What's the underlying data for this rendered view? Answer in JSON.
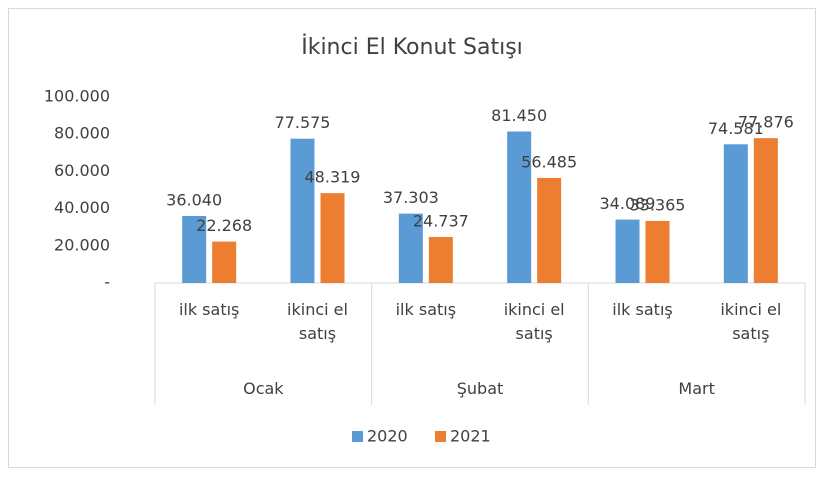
{
  "chart_data": {
    "type": "bar",
    "title": "İkinci El Konut Satışı",
    "groups": [
      "Ocak",
      "Şubat",
      "Mart"
    ],
    "categories": [
      "ilk satış",
      "ikinci el satış",
      "ilk satış",
      "ikinci el satış",
      "ilk satış",
      "ikinci el satış"
    ],
    "series": [
      {
        "name": "2020",
        "color": "#5b9bd5",
        "values": [
          36040,
          77575,
          37303,
          81450,
          34089,
          74581
        ],
        "value_labels": [
          "36.040",
          "77.575",
          "37.303",
          "81.450",
          "34.089",
          "74.581"
        ]
      },
      {
        "name": "2021",
        "color": "#ed7d31",
        "values": [
          22268,
          48319,
          24737,
          56485,
          33365,
          77876
        ],
        "value_labels": [
          "22.268",
          "48.319",
          "24.737",
          "56.485",
          "33.365",
          "77.876"
        ]
      }
    ],
    "ylim": [
      0,
      100000
    ],
    "yticks": [
      {
        "value": 0,
        "label": "-"
      },
      {
        "value": 20000,
        "label": "20.000"
      },
      {
        "value": 40000,
        "label": "40.000"
      },
      {
        "value": 60000,
        "label": "60.000"
      },
      {
        "value": 80000,
        "label": "80.000"
      },
      {
        "value": 100000,
        "label": "100.000"
      }
    ],
    "grid": false,
    "legend": "bottom"
  }
}
